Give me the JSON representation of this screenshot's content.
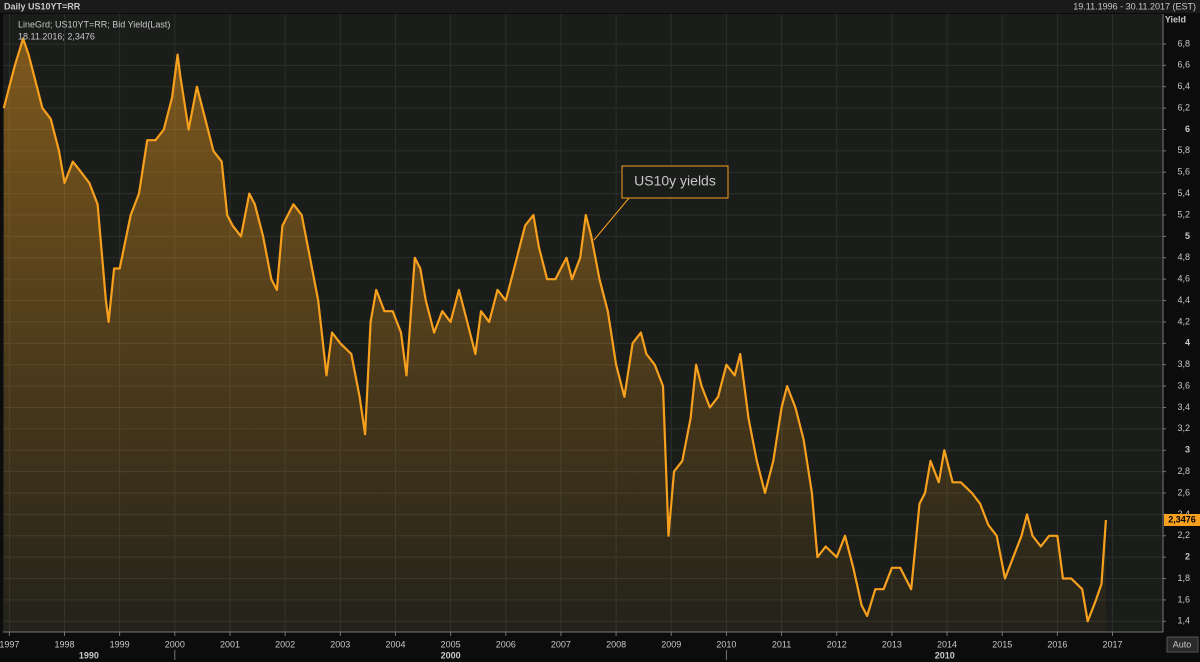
{
  "chart_data": {
    "type": "line",
    "title": "Daily US10YT=RR",
    "date_range": "19.11.1996 - 30.11.2017 (EST)",
    "legend_lines": [
      "LineGrd; US10YT=RR; Bid Yield(Last)",
      "18.11.2016; 2,3476"
    ],
    "y_axis_label": "Yield",
    "annotation": "US10y yields",
    "auto_button": "Auto",
    "decades": [
      "1990",
      "2000",
      "2010"
    ],
    "last_price": {
      "value": 2.3476,
      "label": "2,3476"
    },
    "grid": true,
    "xlim": [
      1996.885,
      2017.915
    ],
    "ylim": [
      1.3,
      7.08
    ],
    "xticks": [
      1997,
      1998,
      1999,
      2000,
      2001,
      2002,
      2003,
      2004,
      2005,
      2006,
      2007,
      2008,
      2009,
      2010,
      2011,
      2012,
      2013,
      2014,
      2015,
      2016,
      2017
    ],
    "yticks": [
      {
        "value": 1.4,
        "label": "1,4"
      },
      {
        "value": 1.6,
        "label": "1,6"
      },
      {
        "value": 1.8,
        "label": "1,8"
      },
      2,
      {
        "value": 2.2,
        "label": "2,2"
      },
      {
        "value": 2.4,
        "label": "2,4"
      },
      {
        "value": 2.6,
        "label": "2,6"
      },
      {
        "value": 2.8,
        "label": "2,8"
      },
      3,
      {
        "value": 3.2,
        "label": "3,2"
      },
      {
        "value": 3.4,
        "label": "3,4"
      },
      {
        "value": 3.6,
        "label": "3,6"
      },
      {
        "value": 3.8,
        "label": "3,8"
      },
      4,
      {
        "value": 4.2,
        "label": "4,2"
      },
      {
        "value": 4.4,
        "label": "4,4"
      },
      {
        "value": 4.6,
        "label": "4,6"
      },
      {
        "value": 4.8,
        "label": "4,8"
      },
      5,
      {
        "value": 5.2,
        "label": "5,2"
      },
      {
        "value": 5.4,
        "label": "5,4"
      },
      {
        "value": 5.6,
        "label": "5,6"
      },
      {
        "value": 5.8,
        "label": "5,8"
      },
      6,
      {
        "value": 6.2,
        "label": "6,2"
      },
      {
        "value": 6.4,
        "label": "6,4"
      },
      {
        "value": 6.6,
        "label": "6,6"
      },
      {
        "value": 6.8,
        "label": "6,8"
      }
    ],
    "series": [
      {
        "color": "#f7a01e",
        "x": [
          1996.9,
          1997.0,
          1997.1,
          1997.25,
          1997.35,
          1997.5,
          1997.6,
          1997.75,
          1997.9,
          1998.0,
          1998.15,
          1998.3,
          1998.45,
          1998.6,
          1998.75,
          1998.8,
          1998.9,
          1999.0,
          1999.2,
          1999.35,
          1999.5,
          1999.65,
          1999.8,
          1999.95,
          2000.05,
          2000.1,
          2000.25,
          2000.4,
          2000.55,
          2000.7,
          2000.85,
          2000.95,
          2001.05,
          2001.2,
          2001.35,
          2001.45,
          2001.6,
          2001.75,
          2001.85,
          2001.95,
          2002.15,
          2002.3,
          2002.45,
          2002.6,
          2002.75,
          2002.85,
          2003.0,
          2003.2,
          2003.35,
          2003.45,
          2003.55,
          2003.65,
          2003.8,
          2003.95,
          2004.1,
          2004.2,
          2004.35,
          2004.45,
          2004.55,
          2004.7,
          2004.85,
          2005.0,
          2005.15,
          2005.3,
          2005.45,
          2005.55,
          2005.7,
          2005.85,
          2006.0,
          2006.15,
          2006.35,
          2006.5,
          2006.6,
          2006.75,
          2006.9,
          2007.0,
          2007.1,
          2007.2,
          2007.35,
          2007.45,
          2007.55,
          2007.7,
          2007.85,
          2008.0,
          2008.15,
          2008.3,
          2008.45,
          2008.55,
          2008.7,
          2008.85,
          2008.95,
          2009.05,
          2009.2,
          2009.35,
          2009.45,
          2009.55,
          2009.7,
          2009.85,
          2010.0,
          2010.15,
          2010.25,
          2010.4,
          2010.55,
          2010.7,
          2010.85,
          2011.0,
          2011.1,
          2011.25,
          2011.4,
          2011.55,
          2011.65,
          2011.8,
          2012.0,
          2012.15,
          2012.3,
          2012.45,
          2012.55,
          2012.7,
          2012.85,
          2013.0,
          2013.15,
          2013.35,
          2013.5,
          2013.6,
          2013.7,
          2013.85,
          2013.95,
          2014.1,
          2014.25,
          2014.45,
          2014.6,
          2014.75,
          2014.9,
          2015.05,
          2015.2,
          2015.35,
          2015.45,
          2015.55,
          2015.7,
          2015.85,
          2016.0,
          2016.1,
          2016.25,
          2016.45,
          2016.55,
          2016.7,
          2016.8,
          2016.88
        ],
        "values": [
          6.2,
          6.4,
          6.6,
          6.85,
          6.7,
          6.4,
          6.2,
          6.1,
          5.8,
          5.5,
          5.7,
          5.6,
          5.5,
          5.3,
          4.4,
          4.2,
          4.7,
          4.7,
          5.2,
          5.4,
          5.9,
          5.9,
          6.0,
          6.3,
          6.7,
          6.5,
          6.0,
          6.4,
          6.1,
          5.8,
          5.7,
          5.2,
          5.1,
          5.0,
          5.4,
          5.3,
          5.0,
          4.6,
          4.5,
          5.1,
          5.3,
          5.2,
          4.8,
          4.4,
          3.7,
          4.1,
          4.0,
          3.9,
          3.5,
          3.15,
          4.2,
          4.5,
          4.3,
          4.3,
          4.1,
          3.7,
          4.8,
          4.7,
          4.4,
          4.1,
          4.3,
          4.2,
          4.5,
          4.2,
          3.9,
          4.3,
          4.2,
          4.5,
          4.4,
          4.7,
          5.1,
          5.2,
          4.9,
          4.6,
          4.6,
          4.7,
          4.8,
          4.6,
          4.8,
          5.2,
          5.0,
          4.6,
          4.3,
          3.8,
          3.5,
          4.0,
          4.1,
          3.9,
          3.8,
          3.6,
          2.2,
          2.8,
          2.9,
          3.3,
          3.8,
          3.6,
          3.4,
          3.5,
          3.8,
          3.7,
          3.9,
          3.3,
          2.9,
          2.6,
          2.9,
          3.4,
          3.6,
          3.4,
          3.1,
          2.6,
          2.0,
          2.1,
          2.0,
          2.2,
          1.9,
          1.55,
          1.45,
          1.7,
          1.7,
          1.9,
          1.9,
          1.7,
          2.5,
          2.6,
          2.9,
          2.7,
          3.0,
          2.7,
          2.7,
          2.6,
          2.5,
          2.3,
          2.2,
          1.8,
          2.0,
          2.2,
          2.4,
          2.2,
          2.1,
          2.2,
          2.2,
          1.8,
          1.8,
          1.7,
          1.4,
          1.6,
          1.75,
          2.3476
        ]
      }
    ]
  }
}
